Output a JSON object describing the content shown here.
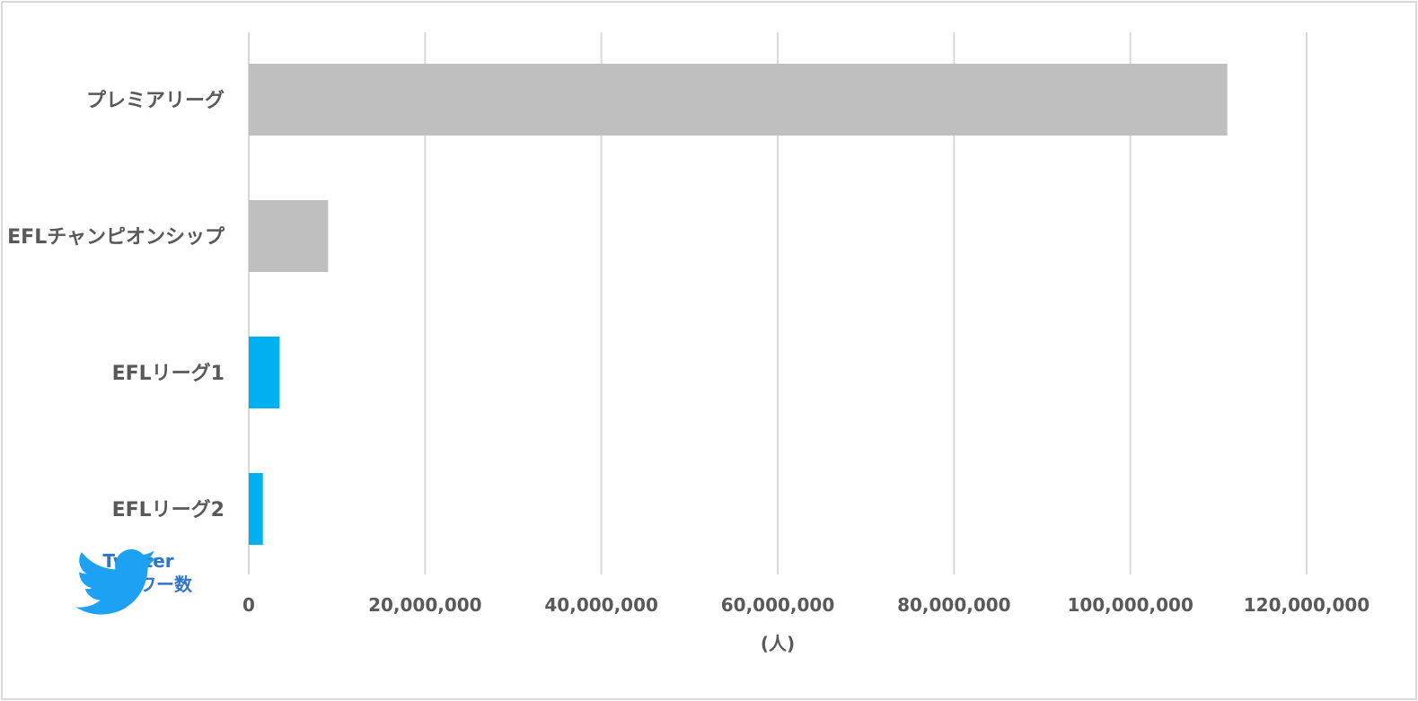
{
  "chart_data": {
    "type": "bar",
    "orientation": "horizontal",
    "categories": [
      "プレミアリーグ",
      "EFLチャンピオンシップ",
      "EFLリーグ1",
      "EFLリーグ2"
    ],
    "values": [
      111000000,
      9000000,
      3500000,
      1600000
    ],
    "bar_colors": [
      "#bfbfbf",
      "#bfbfbf",
      "#00b0f0",
      "#00b0f0"
    ],
    "xlim": [
      0,
      120000000
    ],
    "xticks": [
      0,
      20000000,
      40000000,
      60000000,
      80000000,
      100000000,
      120000000
    ],
    "xtick_labels": [
      "0",
      "20,000,000",
      "40,000,000",
      "60,000,000",
      "80,000,000",
      "100,000,000",
      "120,000,000"
    ],
    "xlabel": "(人)",
    "grid": true,
    "gridline_color": "#d9d9d9"
  },
  "badge": {
    "icon": "twitter-bird-icon",
    "icon_color": "#1da1f2",
    "line1": "Twitter",
    "line2": "フォロワー数"
  }
}
